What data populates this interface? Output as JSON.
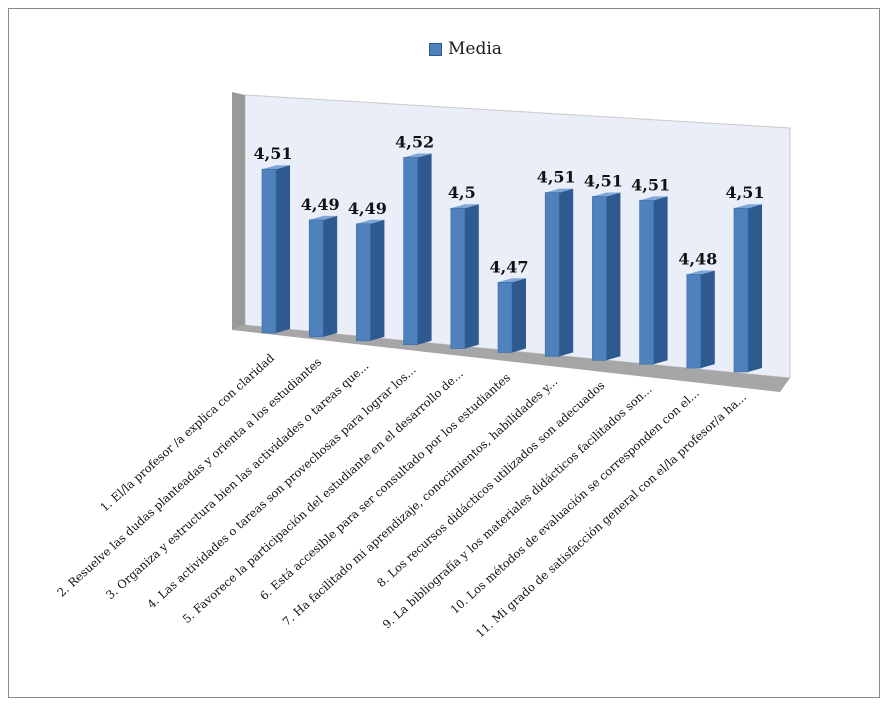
{
  "chart_data": {
    "type": "bar",
    "legend": "top-center",
    "series": [
      {
        "name": "Media",
        "values": [
          4.51,
          4.49,
          4.49,
          4.52,
          4.5,
          4.47,
          4.51,
          4.51,
          4.51,
          4.48,
          4.51
        ]
      }
    ],
    "value_labels": [
      "4,51",
      "4,49",
      "4,49",
      "4,52",
      "4,5",
      "4,47",
      "4,51",
      "4,51",
      "4,51",
      "4,48",
      "4,51"
    ],
    "categories": [
      "1. El/la profesor /a explica con claridad",
      "2. Resuelve las dudas planteadas y orienta a los estudiantes",
      "3. Organiza y estructura bien las actividades o tareas que...",
      "4. Las actividades o tareas son provechosas para lograr los...",
      "5. Favorece la participación del estudiante en el desarrollo de...",
      "6. Está accesible para ser consultado por los estudiantes",
      "7. Ha facilitado mi aprendizaje, conocimientos, habilidades y...",
      "8. Los recursos didácticos utilizados son adecuados",
      "9. La bibliografía y los materiales didácticos facilitados son...",
      "10. Los métodos de evaluación se corresponden con el...",
      "11. Mi grado de satisfacción general con el/la profesor/a ha..."
    ],
    "ylim": [
      4.44,
      4.53
    ],
    "grid": false,
    "colors": {
      "bar": "#4f81bd",
      "bar_side": "#2e5a8f",
      "bar_top": "#7ea6d8",
      "back_wall": "#e9eef8",
      "side_wall": "#9a9a9a",
      "floor": "#a6a6a6"
    }
  }
}
